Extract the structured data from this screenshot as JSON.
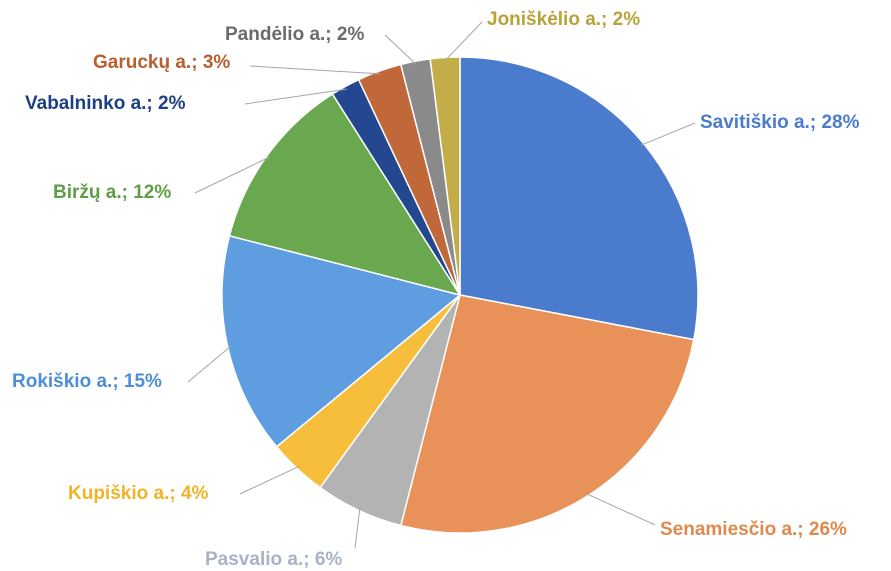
{
  "chart_data": {
    "type": "pie",
    "value_labels": [
      "Savitiškio a.; 28%",
      "Senamiesčio a.; 26%",
      "Pasvalio a.; 6%",
      "Kupiškio a.; 4%",
      "Rokiškio a.; 15%",
      "Biržų a.; 12%",
      "Vabalninko a.; 2%",
      "Garuckų a.; 3%",
      "Pandėlio a.; 2%",
      "Joniškėlio a.; 2%"
    ],
    "values": [
      28,
      26,
      6,
      4,
      15,
      12,
      2,
      3,
      2,
      2
    ],
    "colors": [
      "#4a7bcc",
      "#e8925a",
      "#b3b3b3",
      "#f7be3c",
      "#5d9de0",
      "#6aa84f",
      "#23488f",
      "#c0683a",
      "#8a8a8a",
      "#c2ad48"
    ],
    "label_colors": [
      "#4a7bcc",
      "#e0894d",
      "#a9b3c4",
      "#f0b429",
      "#4d8fd6",
      "#5f9e46",
      "#1f3f85",
      "#b85f30",
      "#6b6b6b",
      "#b8a33a"
    ]
  }
}
